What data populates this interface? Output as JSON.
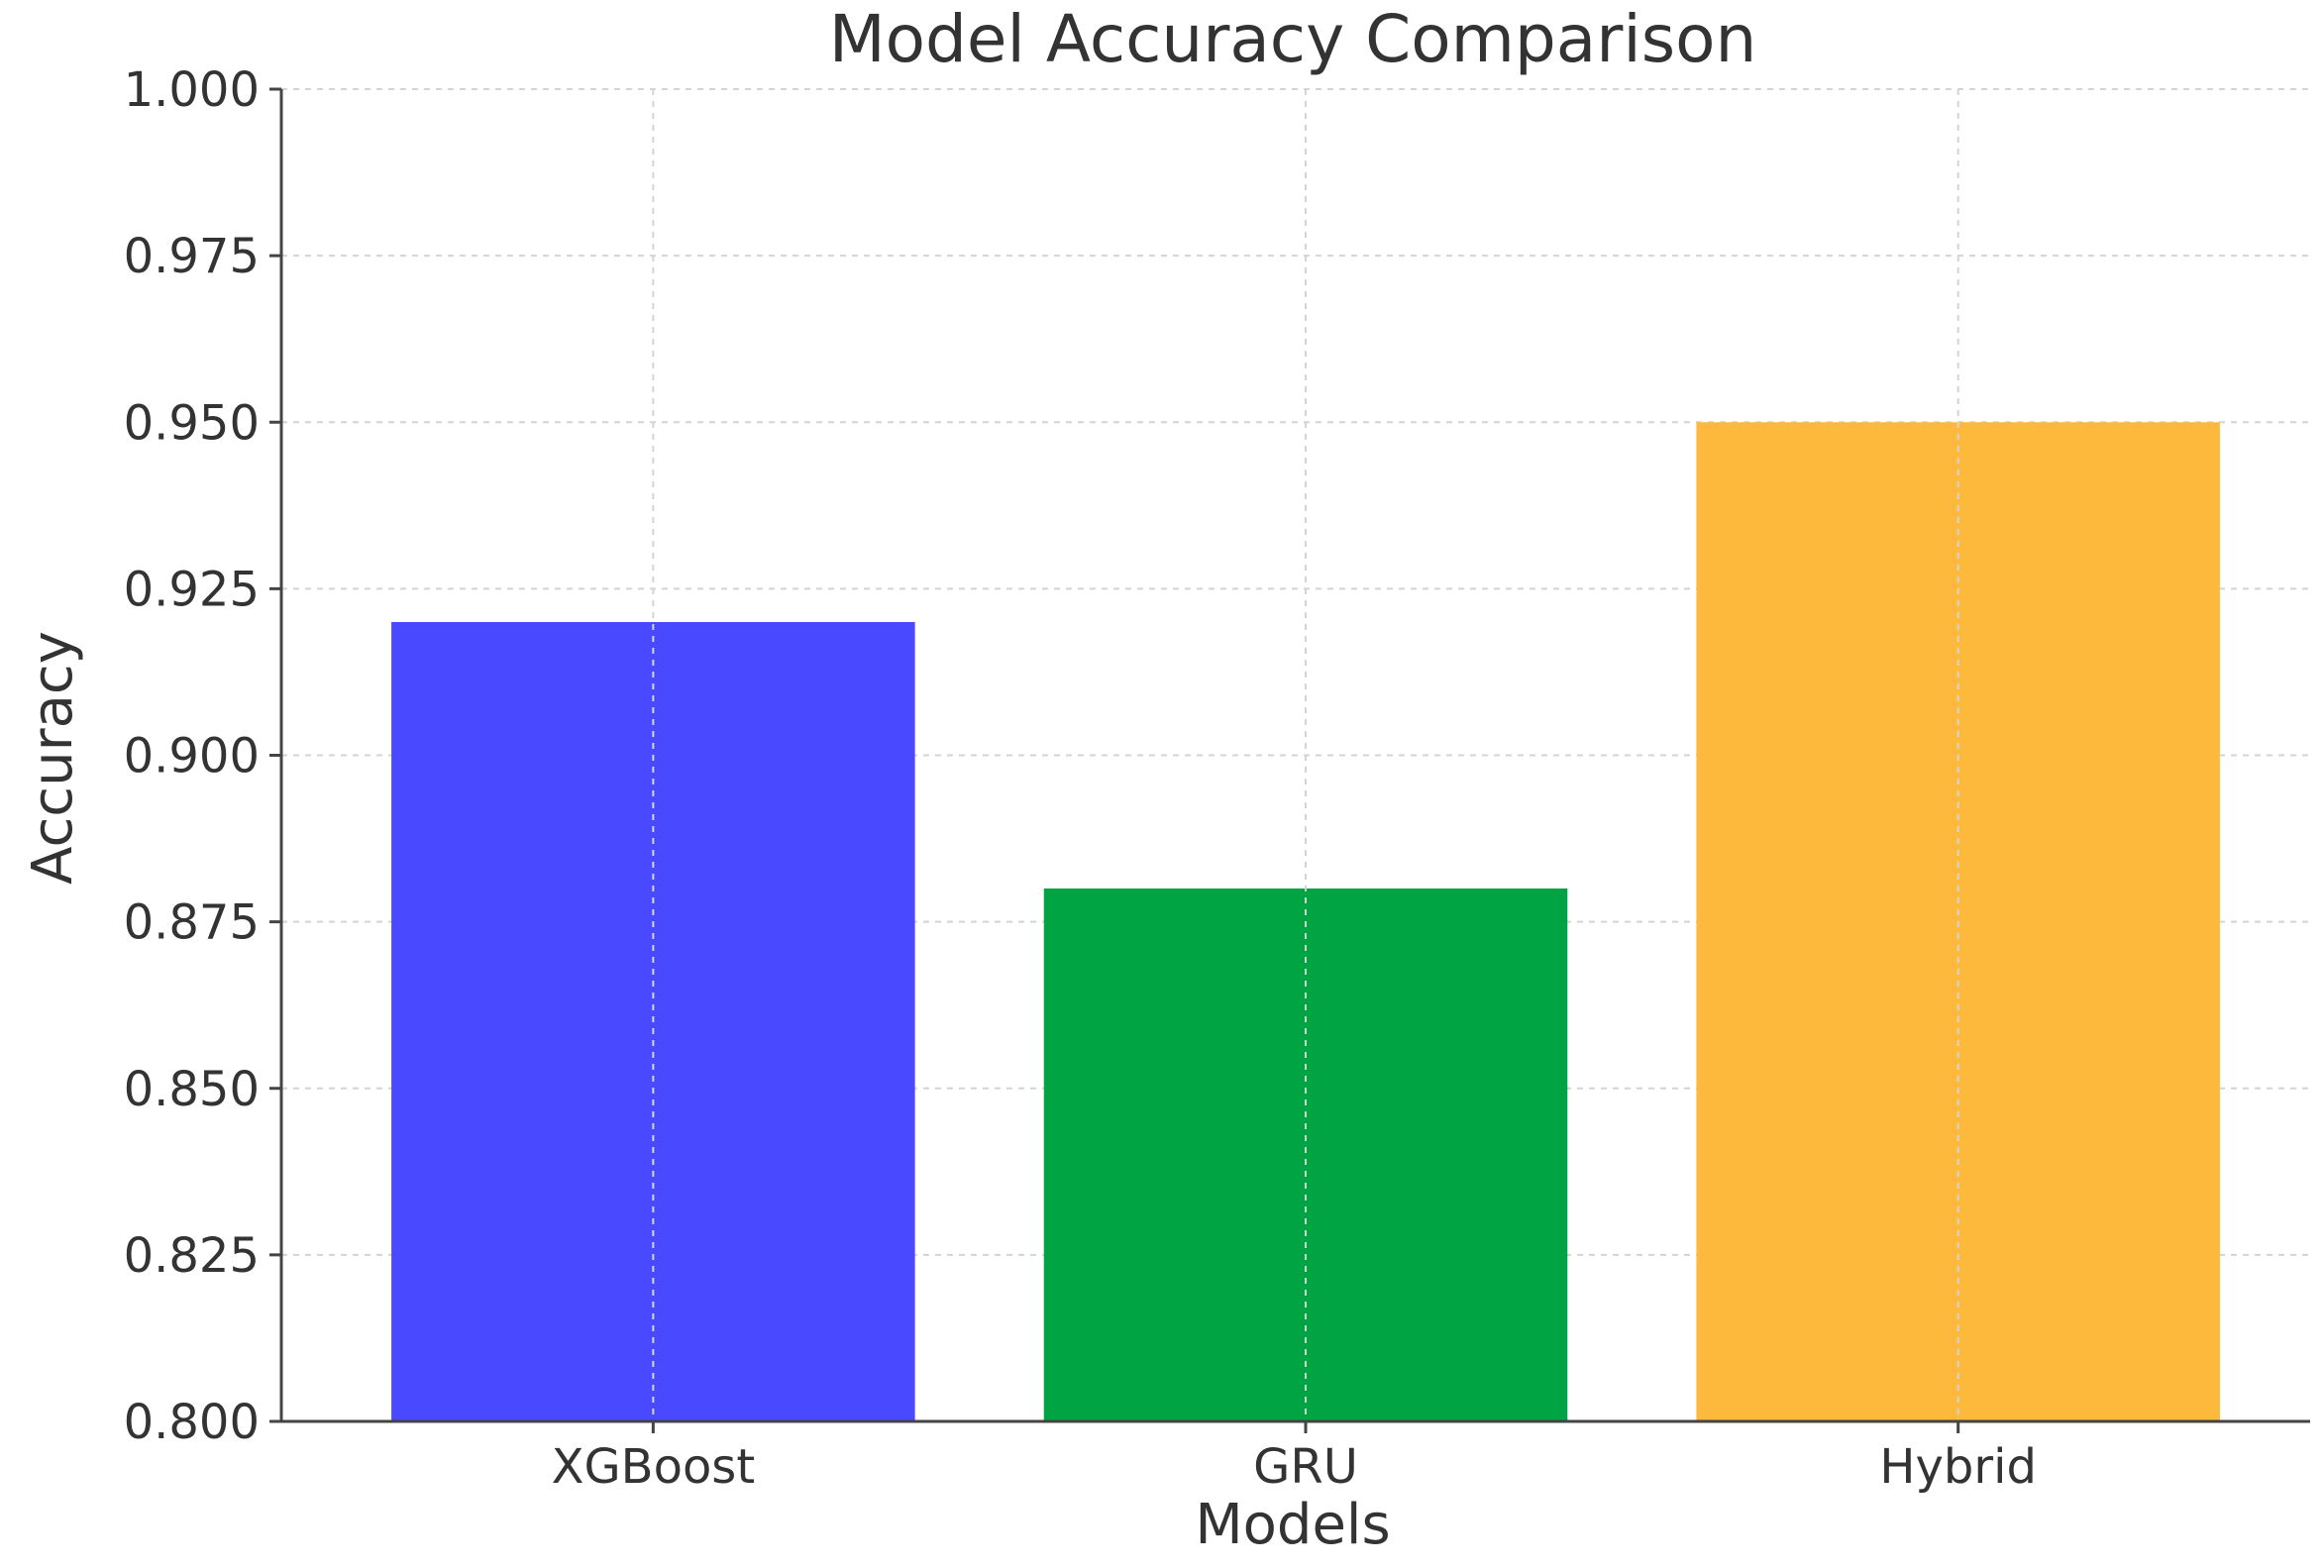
{
  "chart_data": {
    "type": "bar",
    "title": "Model Accuracy Comparison",
    "xlabel": "Models",
    "ylabel": "Accuracy",
    "categories": [
      "XGBoost",
      "GRU",
      "Hybrid"
    ],
    "values": [
      0.92,
      0.88,
      0.95
    ],
    "colors": [
      "#4949ff",
      "#00a442",
      "#fdb93c"
    ],
    "ylim": [
      0.8,
      1.0
    ],
    "yticks": [
      "0.800",
      "0.825",
      "0.850",
      "0.875",
      "0.900",
      "0.925",
      "0.950",
      "0.975",
      "1.000"
    ],
    "grid": true
  }
}
